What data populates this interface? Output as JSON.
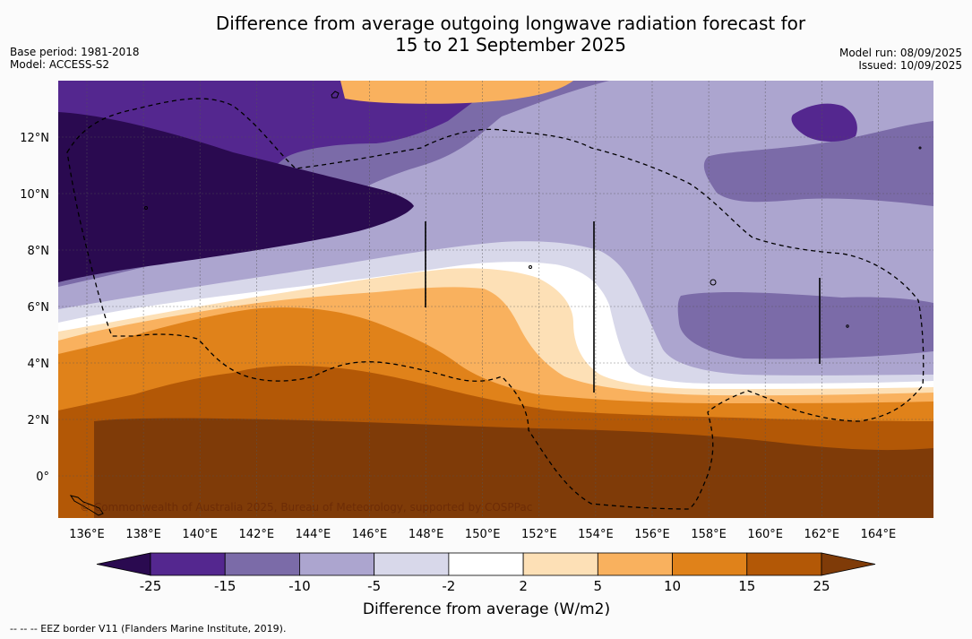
{
  "title_line1": "Difference from average outgoing longwave radiation forecast for",
  "title_line2": "15 to 21 September 2025",
  "meta_left": [
    "Base period: 1981-2018",
    "Model: ACCESS-S2"
  ],
  "meta_right": [
    "Model run: 08/09/2025",
    "Issued: 10/09/2025"
  ],
  "copyright": "© Commonwealth of Australia 2025, Bureau of Meteorology, supported by COSPPac",
  "lon_ticks": [
    "136°E",
    "138°E",
    "140°E",
    "142°E",
    "144°E",
    "146°E",
    "148°E",
    "150°E",
    "152°E",
    "154°E",
    "156°E",
    "158°E",
    "160°E",
    "162°E",
    "164°E"
  ],
  "lat_ticks": [
    "12°N",
    "10°N",
    "8°N",
    "6°N",
    "4°N",
    "2°N",
    "0°"
  ],
  "legend": {
    "title": "Difference from average (W/m2)",
    "labels": [
      "-25",
      "-15",
      "-10",
      "-5",
      "-2",
      "2",
      "5",
      "10",
      "15",
      "25"
    ],
    "colors": [
      "#2a0a50",
      "#54278f",
      "#7b6ba8",
      "#aca5cf",
      "#d8d8ea",
      "#ffffff",
      "#fde0b6",
      "#f9b15e",
      "#e0821a",
      "#b35806",
      "#7f3b08"
    ]
  },
  "footnote": "--  --  -- EEZ border V11 (Flanders Marine Institute, 2019)."
}
